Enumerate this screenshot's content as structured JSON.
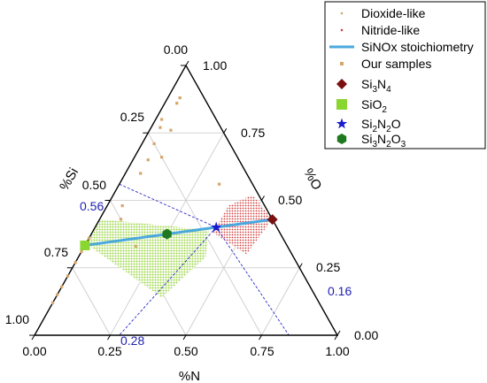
{
  "chart_data": {
    "type": "ternary",
    "axes": {
      "bottom": {
        "label": "%N",
        "ticks": [
          "0.00",
          "0.25",
          "0.50",
          "0.75",
          "1.00"
        ]
      },
      "left": {
        "label": "%Si",
        "ticks": [
          "0.00",
          "0.25",
          "0.50",
          "0.75",
          "1.00"
        ]
      },
      "right": {
        "label": "%O",
        "ticks": [
          "0.00",
          "0.25",
          "0.50",
          "0.75",
          "1.00"
        ]
      }
    },
    "grid": true,
    "legend": {
      "placement": "top-right",
      "entries": [
        {
          "key": "dioxide",
          "label": "Dioxide-like",
          "sub": ""
        },
        {
          "key": "nitride",
          "label": "Nitride-like",
          "sub": ""
        },
        {
          "key": "stoich",
          "label": "SiNOx stoichiometry",
          "sub": ""
        },
        {
          "key": "samples",
          "label": "Our samples",
          "sub": ""
        },
        {
          "key": "si3n4",
          "label": "Si",
          "sub1": "3",
          "mid": "N",
          "sub2": "4"
        },
        {
          "key": "sio2",
          "label": "SiO",
          "sub1": "2",
          "mid": "",
          "sub2": ""
        },
        {
          "key": "si2n2o",
          "label": "Si",
          "sub1": "2",
          "mid": "N",
          "sub2": "2",
          "tail": "O"
        },
        {
          "key": "si3n2o3",
          "label": "Si",
          "sub1": "3",
          "mid": "N",
          "sub2": "2",
          "tail": "O",
          "sub3": "3"
        }
      ]
    },
    "colors": {
      "dioxide": "#9ed84a",
      "nitride": "#d23b3b",
      "stoich": "#4aa8de",
      "samples": "#d6a56a",
      "si3n4": "#7a1010",
      "sio2": "#8ad630",
      "si2n2o": "#1a1acc",
      "si3n2o3": "#1f7a1f",
      "guide": "#2a2acc"
    },
    "annotations": [
      {
        "text": "0.56",
        "kind": "si-guide"
      },
      {
        "text": "0.28",
        "kind": "n-guide"
      },
      {
        "text": "0.16",
        "kind": "o-guide"
      }
    ],
    "series": {
      "stoichiometry_line": [
        {
          "si": 0.333,
          "n": 0.0,
          "o": 0.667
        },
        {
          "si": 0.429,
          "n": 0.571,
          "o": 0.0
        }
      ],
      "reference_points": [
        {
          "name": "SiO2",
          "si": 0.333,
          "n": 0.0,
          "o": 0.667
        },
        {
          "name": "Si3N2O3",
          "si": 0.375,
          "n": 0.25,
          "o": 0.375
        },
        {
          "name": "Si2N2O",
          "si": 0.4,
          "n": 0.4,
          "o": 0.2
        },
        {
          "name": "Si3N4",
          "si": 0.429,
          "n": 0.571,
          "o": 0.0
        }
      ],
      "guide_point": {
        "si": 0.56,
        "n": 0.28,
        "o": 0.16
      },
      "dioxide_region": [
        {
          "si": 0.34,
          "n": 0.0,
          "o": 0.66
        },
        {
          "si": 0.14,
          "n": 0.35,
          "o": 0.51
        },
        {
          "si": 0.29,
          "n": 0.42,
          "o": 0.29
        },
        {
          "si": 0.39,
          "n": 0.38,
          "o": 0.23
        },
        {
          "si": 0.43,
          "n": 0.0,
          "o": 0.57
        }
      ],
      "nitride_region": [
        {
          "si": 0.38,
          "n": 0.4,
          "o": 0.22
        },
        {
          "si": 0.3,
          "n": 0.55,
          "o": 0.15
        },
        {
          "si": 0.43,
          "n": 0.57,
          "o": 0.0
        },
        {
          "si": 0.52,
          "n": 0.46,
          "o": 0.02
        },
        {
          "si": 0.48,
          "n": 0.4,
          "o": 0.12
        }
      ],
      "our_samples": [
        {
          "si": 0.12,
          "n": 0.0,
          "o": 0.88
        },
        {
          "si": 0.15,
          "n": 0.0,
          "o": 0.85
        },
        {
          "si": 0.18,
          "n": 0.0,
          "o": 0.82
        },
        {
          "si": 0.22,
          "n": 0.0,
          "o": 0.78
        },
        {
          "si": 0.27,
          "n": 0.0,
          "o": 0.73
        },
        {
          "si": 0.31,
          "n": 0.0,
          "o": 0.69
        },
        {
          "si": 0.36,
          "n": 0.0,
          "o": 0.64
        },
        {
          "si": 0.33,
          "n": 0.17,
          "o": 0.5
        },
        {
          "si": 0.43,
          "n": 0.07,
          "o": 0.5
        },
        {
          "si": 0.48,
          "n": 0.05,
          "o": 0.47
        },
        {
          "si": 0.6,
          "n": 0.05,
          "o": 0.35
        },
        {
          "si": 0.65,
          "n": 0.05,
          "o": 0.3
        },
        {
          "si": 0.71,
          "n": 0.04,
          "o": 0.25
        },
        {
          "si": 0.77,
          "n": 0.03,
          "o": 0.2
        },
        {
          "si": 0.8,
          "n": 0.02,
          "o": 0.18
        },
        {
          "si": 0.86,
          "n": 0.04,
          "o": 0.1
        },
        {
          "si": 0.88,
          "n": 0.04,
          "o": 0.08
        },
        {
          "si": 0.76,
          "n": 0.07,
          "o": 0.17
        },
        {
          "si": 0.66,
          "n": 0.09,
          "o": 0.25
        },
        {
          "si": 0.56,
          "n": 0.33,
          "o": 0.11
        }
      ]
    }
  }
}
